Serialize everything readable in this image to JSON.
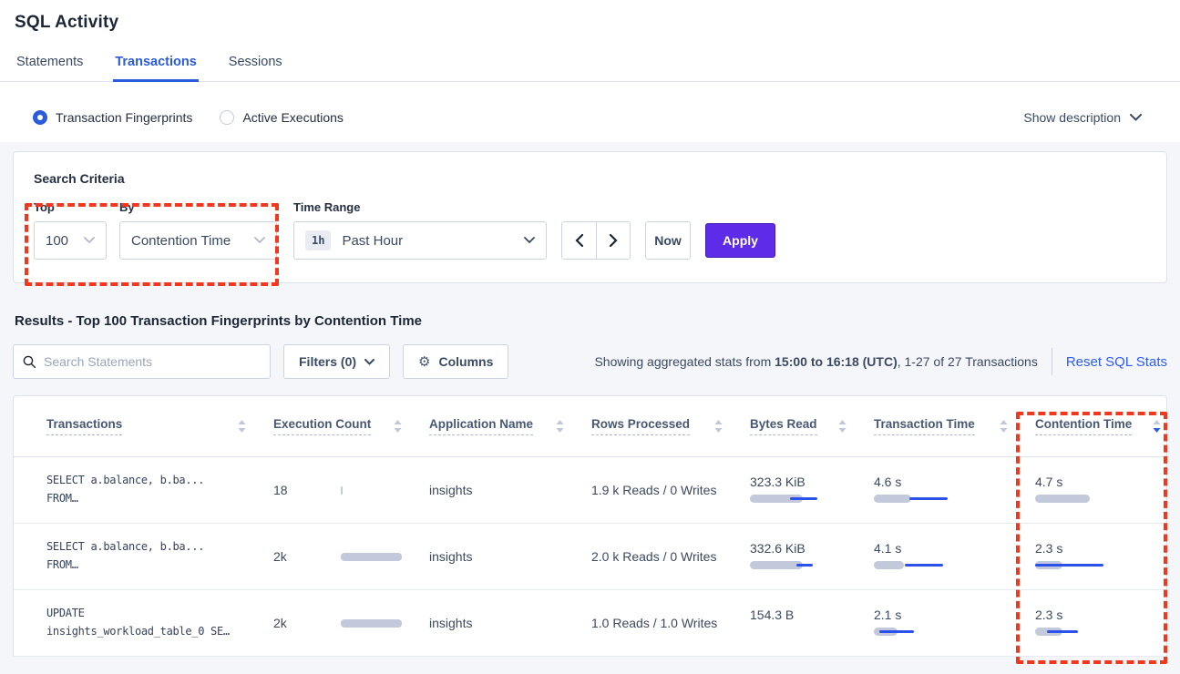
{
  "page": {
    "title": "SQL Activity"
  },
  "colors": {
    "accent_blue": "#2a5bdb",
    "link_blue": "#2d5cf6",
    "apply_purple": "#5e2ce8",
    "bar_gray": "#c2c9db",
    "bar_blue": "#2c51ea",
    "annotation_red": "#f2371f"
  },
  "icons": {
    "search": "magnifier",
    "filters": "chevron-down",
    "columns": "gear",
    "time_range": "chevron-down",
    "prev": "chevron-left",
    "next": "chevron-right",
    "show_description": "chevron-down",
    "sort": "sort-arrows",
    "radio_selected": "filled-circle",
    "radio_unselected": "empty-circle"
  },
  "tabs": [
    {
      "label": "Statements",
      "active": false
    },
    {
      "label": "Transactions",
      "active": true
    },
    {
      "label": "Sessions",
      "active": false
    }
  ],
  "view_toggle": {
    "options": [
      {
        "label": "Transaction Fingerprints",
        "selected": true
      },
      {
        "label": "Active Executions",
        "selected": false
      }
    ],
    "show_description": "Show description"
  },
  "search_criteria": {
    "title": "Search Criteria",
    "top": {
      "label": "Top",
      "value": "100"
    },
    "by": {
      "label": "By",
      "value": "Contention Time"
    },
    "time_range": {
      "label": "Time Range",
      "badge": "1h",
      "value": "Past Hour"
    },
    "now_label": "Now",
    "apply_label": "Apply"
  },
  "results": {
    "heading": "Results - Top 100 Transaction Fingerprints by Contention Time",
    "search_placeholder": "Search Statements",
    "filters_label": "Filters (0)",
    "columns_label": "Columns",
    "stats_prefix": "Showing aggregated stats from ",
    "stats_bold": "15:00 to 16:18 (UTC)",
    "stats_suffix": ", 1-27 of 27 Transactions",
    "reset_label": "Reset SQL Stats"
  },
  "table": {
    "columns": [
      {
        "label": "Transactions",
        "sorted": null
      },
      {
        "label": "Execution Count",
        "sorted": null
      },
      {
        "label": "Application Name",
        "sorted": null
      },
      {
        "label": "Rows Processed",
        "sorted": null
      },
      {
        "label": "Bytes Read",
        "sorted": null
      },
      {
        "label": "Transaction Time",
        "sorted": null
      },
      {
        "label": "Contention Time",
        "sorted": "desc"
      }
    ],
    "rows": [
      {
        "transaction_line1": "SELECT a.balance, b.ba...",
        "transaction_line2": "FROM…",
        "execution_count": {
          "value": "18",
          "bar": 2
        },
        "application_name": "insights",
        "rows_processed": "1.9 k Reads / 0 Writes",
        "bytes_read": {
          "value": "323.3 KiB",
          "bar": 58,
          "line": [
            44,
            74
          ]
        },
        "transaction_time": {
          "value": "4.6 s",
          "bar": 41,
          "line": [
            39,
            81
          ]
        },
        "contention_time": {
          "value": "4.7 s",
          "bar": 60,
          "line": null
        }
      },
      {
        "transaction_line1": "SELECT a.balance, b.ba...",
        "transaction_line2": "FROM…",
        "execution_count": {
          "value": "2k",
          "bar": 67
        },
        "application_name": "insights",
        "rows_processed": "2.0 k Reads / 0 Writes",
        "bytes_read": {
          "value": "332.6 KiB",
          "bar": 58,
          "line": [
            51,
            69
          ]
        },
        "transaction_time": {
          "value": "4.1 s",
          "bar": 33,
          "line": [
            34,
            76
          ]
        },
        "contention_time": {
          "value": "2.3 s",
          "bar": 30,
          "line": [
            0,
            75
          ]
        }
      },
      {
        "transaction_line1": "UPDATE",
        "transaction_line2": "insights_workload_table_0 SE…",
        "execution_count": {
          "value": "2k",
          "bar": 67
        },
        "application_name": "insights",
        "rows_processed": "1.0 Reads / 1.0 Writes",
        "bytes_read": {
          "value": "154.3 B",
          "bar": null,
          "line": null
        },
        "transaction_time": {
          "value": "2.1 s",
          "bar": 26,
          "line": [
            6,
            44
          ]
        },
        "contention_time": {
          "value": "2.3 s",
          "bar": 30,
          "line": [
            13,
            47
          ]
        }
      }
    ]
  }
}
